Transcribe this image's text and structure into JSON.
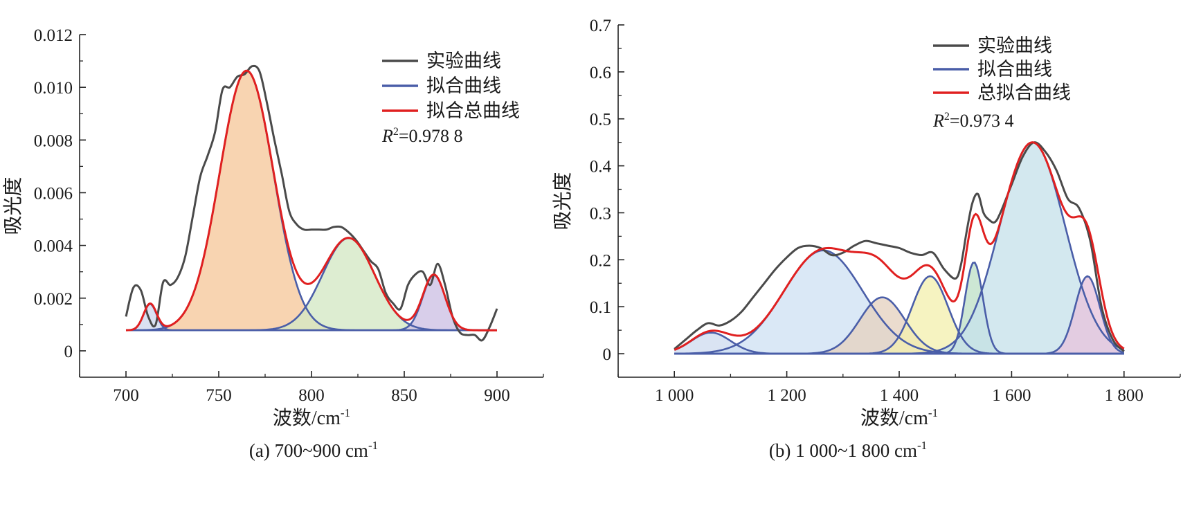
{
  "chart_data": [
    {
      "type": "line",
      "panel": "a",
      "caption": "(a) 700~900 cm",
      "caption_sup": "-1",
      "xlabel": "波数/cm",
      "xlabel_sup": "-1",
      "ylabel": "吸光度",
      "xlim": [
        675,
        925
      ],
      "ylim": [
        -0.001,
        0.012
      ],
      "x_ticks": [
        700,
        750,
        800,
        850,
        900
      ],
      "x_tick_labels": [
        "700",
        "750",
        "800",
        "850",
        "900"
      ],
      "y_ticks": [
        0,
        0.002,
        0.004,
        0.006,
        0.008,
        0.01,
        0.012
      ],
      "y_tick_labels": [
        "0",
        "0.002",
        "0.004",
        "0.006",
        "0.008",
        "0.010",
        "0.012"
      ],
      "baseline": 0.00078,
      "r2_label": "R",
      "r2_value": "=0.978 8",
      "legend": [
        "实验曲线",
        "拟合曲线",
        "拟合总曲线"
      ],
      "legend_colors": [
        "#4a4a4a",
        "#4a5ea8",
        "#e02020"
      ],
      "legend_position": "top-right",
      "peaks": [
        {
          "center": 713,
          "amp": 0.001,
          "sigma": 3.5,
          "fill": "#cfd9ee"
        },
        {
          "center": 765,
          "amp": 0.00985,
          "sigma": 14.5,
          "fill": "#f6c89b"
        },
        {
          "center": 820,
          "amp": 0.0035,
          "sigma": 14,
          "fill": "#d3e8c4"
        },
        {
          "center": 866,
          "amp": 0.0021,
          "sigma": 6,
          "fill": "#cdc0e4"
        }
      ],
      "experimental": {
        "x": [
          700,
          704,
          708,
          712,
          716,
          720,
          724,
          728,
          732,
          736,
          740,
          744,
          748,
          752,
          756,
          760,
          764,
          768,
          772,
          776,
          780,
          784,
          788,
          792,
          796,
          800,
          804,
          808,
          812,
          816,
          820,
          824,
          828,
          832,
          836,
          840,
          844,
          848,
          852,
          856,
          860,
          864,
          868,
          872,
          876,
          880,
          884,
          888,
          892,
          896,
          900
        ],
        "y": [
          0.0013,
          0.0024,
          0.0023,
          0.0013,
          0.001,
          0.0026,
          0.0025,
          0.0028,
          0.0036,
          0.0051,
          0.0066,
          0.0074,
          0.0083,
          0.0099,
          0.01,
          0.0104,
          0.0105,
          0.0108,
          0.0106,
          0.0094,
          0.008,
          0.0067,
          0.0053,
          0.0048,
          0.0046,
          0.0046,
          0.0046,
          0.0046,
          0.0047,
          0.0047,
          0.0045,
          0.0042,
          0.0038,
          0.0034,
          0.0031,
          0.0022,
          0.0018,
          0.0016,
          0.0025,
          0.0029,
          0.003,
          0.0025,
          0.0033,
          0.0025,
          0.0013,
          0.0007,
          0.0006,
          0.0006,
          0.0004,
          0.0009,
          0.0016
        ]
      }
    },
    {
      "type": "line",
      "panel": "b",
      "caption": "(b) 1 000~1 800 cm",
      "caption_sup": "-1",
      "xlabel": "波数/cm",
      "xlabel_sup": "-1",
      "ylabel": "吸光度",
      "xlim": [
        900,
        1900
      ],
      "ylim": [
        -0.05,
        0.7
      ],
      "x_ticks": [
        1000,
        1200,
        1400,
        1600,
        1800
      ],
      "x_tick_labels": [
        "1 000",
        "1 200",
        "1 400",
        "1 600",
        "1 800"
      ],
      "y_ticks": [
        0,
        0.1,
        0.2,
        0.3,
        0.4,
        0.5,
        0.6,
        0.7
      ],
      "y_tick_labels": [
        "0",
        "0.1",
        "0.2",
        "0.3",
        "0.4",
        "0.5",
        "0.6",
        "0.7"
      ],
      "baseline": 0,
      "r2_label": "R",
      "r2_value": "=0.973 4",
      "legend": [
        "实验曲线",
        "拟合曲线",
        "总拟合曲线"
      ],
      "legend_colors": [
        "#4a4a4a",
        "#4a5ea8",
        "#e02020"
      ],
      "legend_position": "top-right",
      "peaks": [
        {
          "center": 1065,
          "amp": 0.045,
          "sigma": 35,
          "fill": "#cfdcef"
        },
        {
          "center": 1265,
          "amp": 0.22,
          "sigma": 70,
          "fill": "#cfe2f3"
        },
        {
          "center": 1370,
          "amp": 0.12,
          "sigma": 40,
          "fill": "#e6d2c0"
        },
        {
          "center": 1455,
          "amp": 0.165,
          "sigma": 32,
          "fill": "#f4f0b0"
        },
        {
          "center": 1533,
          "amp": 0.195,
          "sigma": 16,
          "fill": "#bfe0c8"
        },
        {
          "center": 1637,
          "amp": 0.45,
          "sigma": 58,
          "fill": "#c6e2ea"
        },
        {
          "center": 1735,
          "amp": 0.165,
          "sigma": 22,
          "fill": "#e8c4dc"
        }
      ],
      "experimental": {
        "x": [
          1000,
          1020,
          1040,
          1060,
          1080,
          1100,
          1120,
          1140,
          1160,
          1180,
          1200,
          1220,
          1240,
          1260,
          1280,
          1300,
          1320,
          1340,
          1360,
          1380,
          1400,
          1420,
          1440,
          1460,
          1480,
          1500,
          1510,
          1520,
          1530,
          1540,
          1550,
          1560,
          1570,
          1580,
          1600,
          1620,
          1640,
          1660,
          1680,
          1700,
          1720,
          1740,
          1760,
          1780,
          1800
        ],
        "y": [
          0.01,
          0.03,
          0.05,
          0.065,
          0.06,
          0.07,
          0.09,
          0.12,
          0.15,
          0.18,
          0.205,
          0.225,
          0.23,
          0.225,
          0.21,
          0.215,
          0.23,
          0.24,
          0.235,
          0.23,
          0.225,
          0.215,
          0.21,
          0.215,
          0.18,
          0.16,
          0.19,
          0.26,
          0.32,
          0.34,
          0.3,
          0.285,
          0.28,
          0.3,
          0.36,
          0.42,
          0.45,
          0.43,
          0.39,
          0.33,
          0.31,
          0.24,
          0.1,
          0.03,
          0.005
        ]
      }
    }
  ]
}
